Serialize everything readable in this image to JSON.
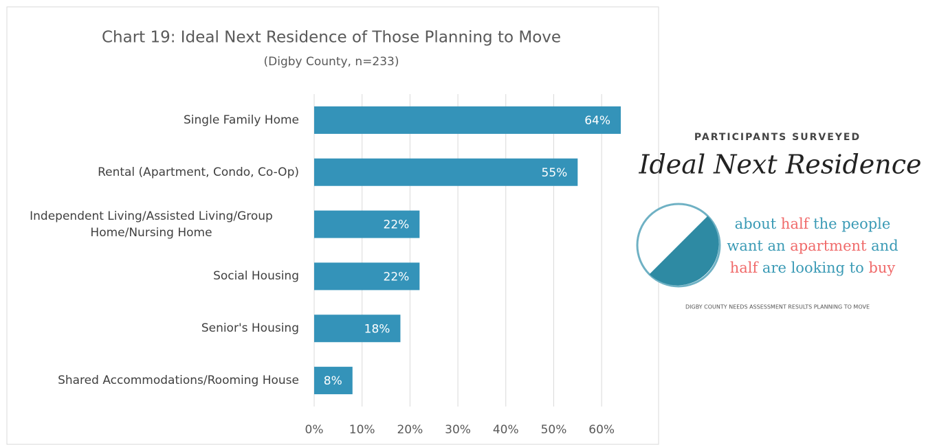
{
  "chart_data": {
    "type": "bar",
    "orientation": "horizontal",
    "title": "Chart 19: Ideal Next Residence of Those Planning  to Move",
    "subtitle": "(Digby County, n=233)",
    "categories": [
      "Single Family Home",
      "Rental (Apartment, Condo, Co-Op)",
      "Independent Living/Assisted Living/Group Home/Nursing Home",
      "Social Housing",
      "Senior's Housing",
      "Shared Accommodations/Rooming House"
    ],
    "values": [
      64,
      55,
      22,
      22,
      18,
      8
    ],
    "value_labels": [
      "64%",
      "55%",
      "22%",
      "22%",
      "18%",
      "8%"
    ],
    "color": "#3493b9",
    "xlim": [
      0,
      65
    ],
    "xticks": [
      {
        "value": 0,
        "label": "0%"
      },
      {
        "value": 10,
        "label": "10%"
      },
      {
        "value": 20,
        "label": "20%"
      },
      {
        "value": 30,
        "label": "30%"
      },
      {
        "value": 40,
        "label": "40%"
      },
      {
        "value": 50,
        "label": "50%"
      },
      {
        "value": 60,
        "label": "60%"
      }
    ],
    "grid": true
  },
  "infographic": {
    "heading": "PARTICIPANTS SURVEYED",
    "title": "Ideal Next Residence",
    "lines": [
      [
        {
          "text": "about ",
          "color": "#3a9ab5"
        },
        {
          "text": "half",
          "color": "#f06a6a"
        },
        {
          "text": " the people",
          "color": "#3a9ab5"
        }
      ],
      [
        {
          "text": "want an ",
          "color": "#3a9ab5"
        },
        {
          "text": "apartment",
          "color": "#f06a6a"
        },
        {
          "text": " and",
          "color": "#3a9ab5"
        }
      ],
      [
        {
          "text": "half",
          "color": "#f06a6a"
        },
        {
          "text": " are looking to ",
          "color": "#3a9ab5"
        },
        {
          "text": "buy",
          "color": "#f06a6a"
        }
      ]
    ],
    "footer": "DIGBY COUNTY NEEDS ASSESSMENT RESULTS  PLANNING TO MOVE"
  }
}
